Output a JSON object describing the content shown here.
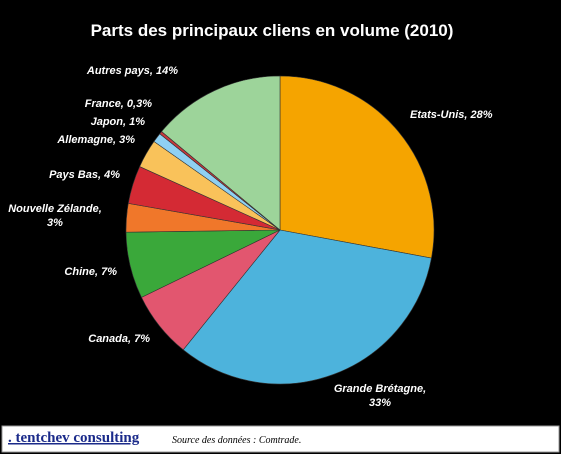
{
  "chart_data": {
    "type": "pie",
    "title": "Parts des principaux cliens en volume (2010)",
    "values": [
      28,
      33,
      7,
      7,
      3,
      4,
      3,
      1,
      0.3,
      14
    ],
    "value_labels": [
      "Etats-Unis, 28%",
      "Grande Brétagne,\n33%",
      "Canada, 7%",
      "Chine, 7%",
      "Nouvelle Zélande,\n3%",
      "Pays Bas, 4%",
      "Allemagne, 3%",
      "Japon, 1%",
      "France, 0,3%",
      "Autres pays, 14%"
    ],
    "colors": [
      "#f5a400",
      "#4db3dc",
      "#e2566f",
      "#3aa83a",
      "#f0772a",
      "#d42a34",
      "#f9c25a",
      "#8fd0f2",
      "#c8383c",
      "#9dd49a"
    ],
    "footer": {
      "brand": ". tentchev consulting",
      "source": "Source des données : Comtrade."
    }
  }
}
